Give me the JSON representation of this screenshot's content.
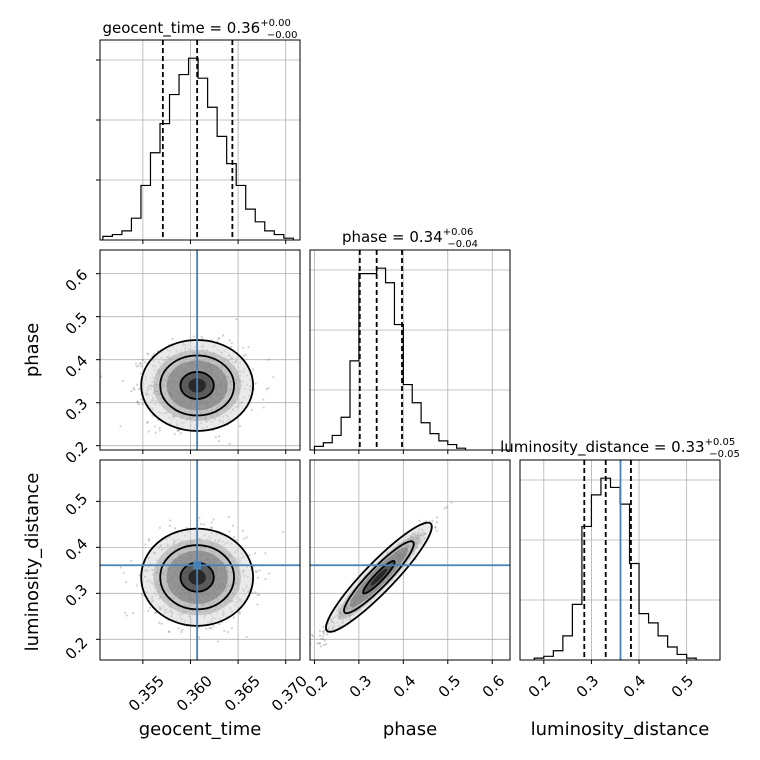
{
  "chart_data": {
    "type": "corner",
    "parameters": [
      "geocent_time",
      "phase",
      "luminosity_distance"
    ],
    "injection": {
      "geocent_time": 0.3607,
      "phase": null,
      "luminosity_distance": 0.361
    },
    "grid": true,
    "panels": [
      {
        "kind": "hist",
        "param": "geocent_time",
        "title": {
          "label": "geocent_time = 0.36",
          "sup": "+0.00",
          "sub": "−0.00"
        },
        "xlim": [
          0.3505,
          0.3715
        ],
        "bin_edges": [
          0.3508,
          0.3518,
          0.3528,
          0.3538,
          0.3548,
          0.3558,
          0.3568,
          0.3578,
          0.3588,
          0.3598,
          0.3608,
          0.3618,
          0.3628,
          0.3638,
          0.3648,
          0.3658,
          0.3668,
          0.3678,
          0.3688,
          0.3698,
          0.3708
        ],
        "counts": [
          0.02,
          0.03,
          0.05,
          0.12,
          0.3,
          0.48,
          0.64,
          0.8,
          0.91,
          1.0,
          0.89,
          0.73,
          0.57,
          0.42,
          0.3,
          0.17,
          0.1,
          0.05,
          0.03,
          0.01
        ],
        "quantiles": [
          0.3571,
          0.3607,
          0.3644
        ]
      },
      {
        "kind": "hist",
        "param": "phase",
        "title": {
          "label": "phase = 0.34",
          "sup": "+0.06",
          "sub": "−0.04"
        },
        "xlim": [
          0.19,
          0.64
        ],
        "bin_edges": [
          0.2,
          0.22,
          0.24,
          0.26,
          0.28,
          0.3,
          0.32,
          0.34,
          0.36,
          0.38,
          0.4,
          0.42,
          0.44,
          0.46,
          0.48,
          0.5,
          0.52,
          0.54
        ],
        "counts": [
          0.02,
          0.04,
          0.08,
          0.18,
          0.49,
          0.97,
          0.97,
          1.0,
          0.92,
          0.69,
          0.36,
          0.26,
          0.15,
          0.09,
          0.05,
          0.03,
          0.01
        ],
        "quantiles": [
          0.302,
          0.34,
          0.397
        ]
      },
      {
        "kind": "hist",
        "param": "luminosity_distance",
        "title": {
          "label": "luminosity_distance = 0.33",
          "sup": "+0.05",
          "sub": "−0.05"
        },
        "xlim": [
          0.15,
          0.57
        ],
        "bin_edges": [
          0.18,
          0.2,
          0.22,
          0.24,
          0.26,
          0.28,
          0.3,
          0.32,
          0.34,
          0.36,
          0.38,
          0.4,
          0.42,
          0.44,
          0.46,
          0.48,
          0.5,
          0.52
        ],
        "counts": [
          0.01,
          0.02,
          0.05,
          0.13,
          0.3,
          0.72,
          0.89,
          0.98,
          0.93,
          0.84,
          0.52,
          0.25,
          0.2,
          0.13,
          0.07,
          0.03,
          0.01
        ],
        "quantiles": [
          0.285,
          0.33,
          0.383
        ],
        "injection_line": 0.361
      },
      {
        "kind": "2d",
        "x": "geocent_time",
        "y": "phase",
        "xlim": [
          0.3505,
          0.3715
        ],
        "ylim": [
          0.19,
          0.655
        ],
        "center": [
          0.3607,
          0.34
        ],
        "spread": [
          0.0025,
          0.045
        ],
        "rho": 0.0,
        "injection": {
          "x": 0.3607,
          "y": null
        }
      },
      {
        "kind": "2d",
        "x": "geocent_time",
        "y": "luminosity_distance",
        "xlim": [
          0.3505,
          0.3715
        ],
        "ylim": [
          0.155,
          0.59
        ],
        "center": [
          0.3607,
          0.335
        ],
        "spread": [
          0.0025,
          0.045
        ],
        "rho": 0.0,
        "injection": {
          "x": 0.3607,
          "y": 0.361
        }
      },
      {
        "kind": "2d",
        "x": "phase",
        "y": "luminosity_distance",
        "xlim": [
          0.19,
          0.64
        ],
        "ylim": [
          0.155,
          0.59
        ],
        "center": [
          0.345,
          0.335
        ],
        "spread": [
          0.05,
          0.05
        ],
        "rho": 0.97,
        "injection": {
          "x": null,
          "y": 0.361
        }
      }
    ],
    "ticks": {
      "geocent_time": [
        "0.355",
        "0.360",
        "0.365",
        "0.370"
      ],
      "phase": [
        "0.2",
        "0.3",
        "0.4",
        "0.5",
        "0.6"
      ],
      "luminosity_distance": [
        "0.2",
        "0.3",
        "0.4",
        "0.5"
      ]
    },
    "colors": {
      "hist": "#000000",
      "quantile": "#000000",
      "injection": "#4682b4",
      "grid": "#b0b0b0",
      "scatter": "#555555"
    }
  }
}
